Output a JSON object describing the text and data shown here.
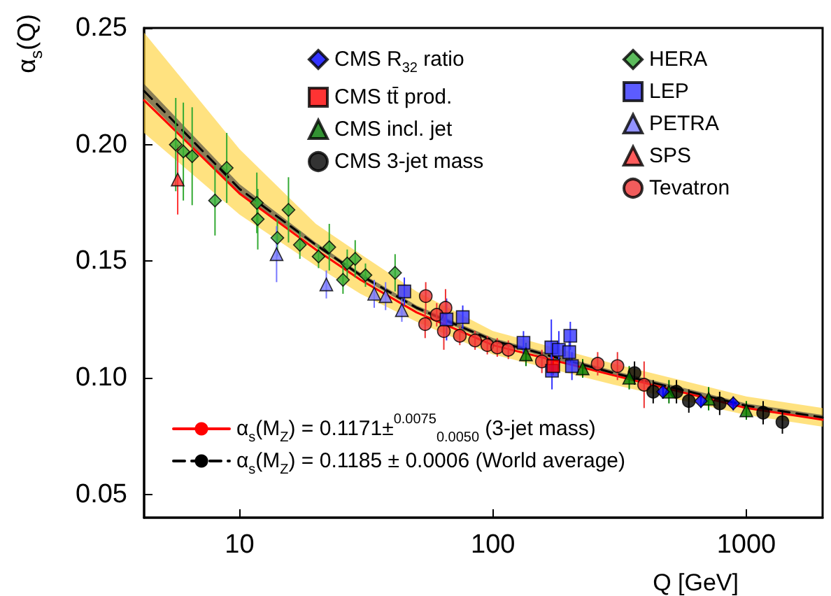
{
  "chart_data": {
    "type": "scatter",
    "ylabel": "α$_{s}$(Q)",
    "xlabel": "Q [GeV]",
    "log": "x",
    "xlim": [
      4.2,
      2000
    ],
    "xticks": [
      10,
      100,
      1000
    ],
    "ylim": [
      0.04,
      0.25
    ],
    "yticks": [
      0.05,
      {
        "value": 0.1,
        "label": "0.10"
      },
      0.15,
      {
        "value": 0.2,
        "label": "0.20"
      },
      0.25
    ],
    "grid": false,
    "legend": "top right",
    "series": [
      {
        "name": "CMS R$_{32}$ ratio",
        "color": "#0000ff",
        "marker": "diamond",
        "x": [
          469,
          662,
          888
        ],
        "values": [
          0.094,
          0.09,
          0.089
        ],
        "errors": [
          0.003,
          0.003,
          0.003
        ]
      },
      {
        "name": "CMS tt̄ prod.",
        "color": "#ff0000",
        "marker": "square",
        "x": [
          173
        ],
        "values": [
          0.105
        ],
        "errors": [
          0.004
        ]
      },
      {
        "name": "CMS incl. jet",
        "color": "#007700",
        "marker": "triangle",
        "x": [
          135,
          226,
          345,
          495,
          710,
          1000
        ],
        "values": [
          0.11,
          0.104,
          0.1,
          0.094,
          0.091,
          0.086
        ],
        "errors": [
          0.005,
          0.004,
          0.005,
          0.005,
          0.005,
          0.004
        ]
      },
      {
        "name": "CMS 3-jet mass",
        "color": "#000000",
        "marker": "circle",
        "x": [
          362,
          429,
          530,
          593,
          785,
          1165,
          1388
        ],
        "values": [
          0.102,
          0.094,
          0.094,
          0.09,
          0.089,
          0.085,
          0.081
        ],
        "errors": [
          0.005,
          0.005,
          0.005,
          0.005,
          0.005,
          0.005,
          0.005
        ]
      },
      {
        "name": "HERA",
        "color": "#33aa33",
        "marker": "diamond",
        "x": [
          5.6,
          6.0,
          6.5,
          8.0,
          8.9,
          11.7,
          11.8,
          14.1,
          15.6,
          17.3,
          20.5,
          22.6,
          25.6,
          26.6,
          28.6,
          31.4,
          41.1
        ],
        "values": [
          0.2,
          0.197,
          0.195,
          0.176,
          0.19,
          0.175,
          0.168,
          0.16,
          0.172,
          0.157,
          0.152,
          0.156,
          0.142,
          0.149,
          0.151,
          0.144,
          0.145
        ],
        "errors": [
          0.02,
          0.021,
          0.021,
          0.015,
          0.015,
          0.013,
          0.013,
          0.008,
          0.014,
          0.006,
          0.005,
          0.01,
          0.006,
          0.006,
          0.008,
          0.005,
          0.008
        ]
      },
      {
        "name": "LEP",
        "color": "#3333ff",
        "marker": "square",
        "x": [
          44.7,
          65.6,
          76,
          132,
          170,
          182,
          202,
          200,
          171,
          205
        ],
        "values": [
          0.137,
          0.125,
          0.126,
          0.115,
          0.113,
          0.112,
          0.118,
          0.111,
          0.103,
          0.105
        ],
        "errors": [
          0.006,
          0.009,
          0.005,
          0.005,
          0.012,
          0.008,
          0.006,
          0.005,
          0.008,
          0.006
        ]
      },
      {
        "name": "PETRA",
        "color": "#7777ff",
        "marker": "triangle",
        "x": [
          14.0,
          22.0,
          34,
          37.7,
          43.7
        ],
        "values": [
          0.153,
          0.14,
          0.136,
          0.135,
          0.129
        ],
        "errors": [
          0.012,
          0.006,
          0.006,
          0.006,
          0.005
        ]
      },
      {
        "name": "SPS",
        "color": "#ff3333",
        "marker": "triangle",
        "x": [
          5.7
        ],
        "values": [
          0.185
        ],
        "errors": [
          0.015
        ]
      },
      {
        "name": "Tevatron",
        "color": "#ee3333",
        "marker": "circle",
        "x": [
          54.3,
          65,
          54,
          60,
          64,
          74,
          85,
          95,
          104,
          115,
          156,
          259,
          310,
          395
        ],
        "values": [
          0.135,
          0.13,
          0.123,
          0.127,
          0.12,
          0.118,
          0.116,
          0.114,
          0.113,
          0.112,
          0.107,
          0.106,
          0.105,
          0.097
        ],
        "errors": [
          0.006,
          0.008,
          0.006,
          0.005,
          0.008,
          0.004,
          0.004,
          0.004,
          0.004,
          0.004,
          0.005,
          0.005,
          0.006,
          0.01
        ]
      },
      {
        "name": "α$_{s}$(M$_{Z}$) = 0.1171±$^{0.0075}$$_{0.0050}$ (3-jet mass)",
        "type": "line",
        "color": "#ff0000",
        "line_style": "solid",
        "x": [
          4.2,
          10,
          20,
          30,
          50,
          100,
          300,
          1000,
          2000
        ],
        "values": [
          0.219,
          0.179,
          0.155,
          0.142,
          0.128,
          0.114,
          0.101,
          0.087,
          0.082
        ],
        "lower": [
          0.205,
          0.17,
          0.148,
          0.136,
          0.124,
          0.11,
          0.097,
          0.084,
          0.079
        ],
        "upper": [
          0.248,
          0.198,
          0.166,
          0.153,
          0.137,
          0.12,
          0.106,
          0.092,
          0.087
        ]
      },
      {
        "name": "α$_{s}$(M$_{Z}$) = 0.1185 ± 0.0006 (World average)",
        "type": "line",
        "color": "#000000",
        "line_style": "dashed",
        "x": [
          4.2,
          10,
          20,
          30,
          50,
          100,
          300,
          1000,
          2000
        ],
        "values": [
          0.223,
          0.181,
          0.157,
          0.144,
          0.13,
          0.116,
          0.102,
          0.088,
          0.083
        ],
        "lower": [
          0.22,
          0.179,
          0.156,
          0.143,
          0.129,
          0.115,
          0.101,
          0.087,
          0.082
        ],
        "upper": [
          0.226,
          0.183,
          0.158,
          0.145,
          0.131,
          0.117,
          0.103,
          0.089,
          0.084
        ]
      }
    ]
  }
}
